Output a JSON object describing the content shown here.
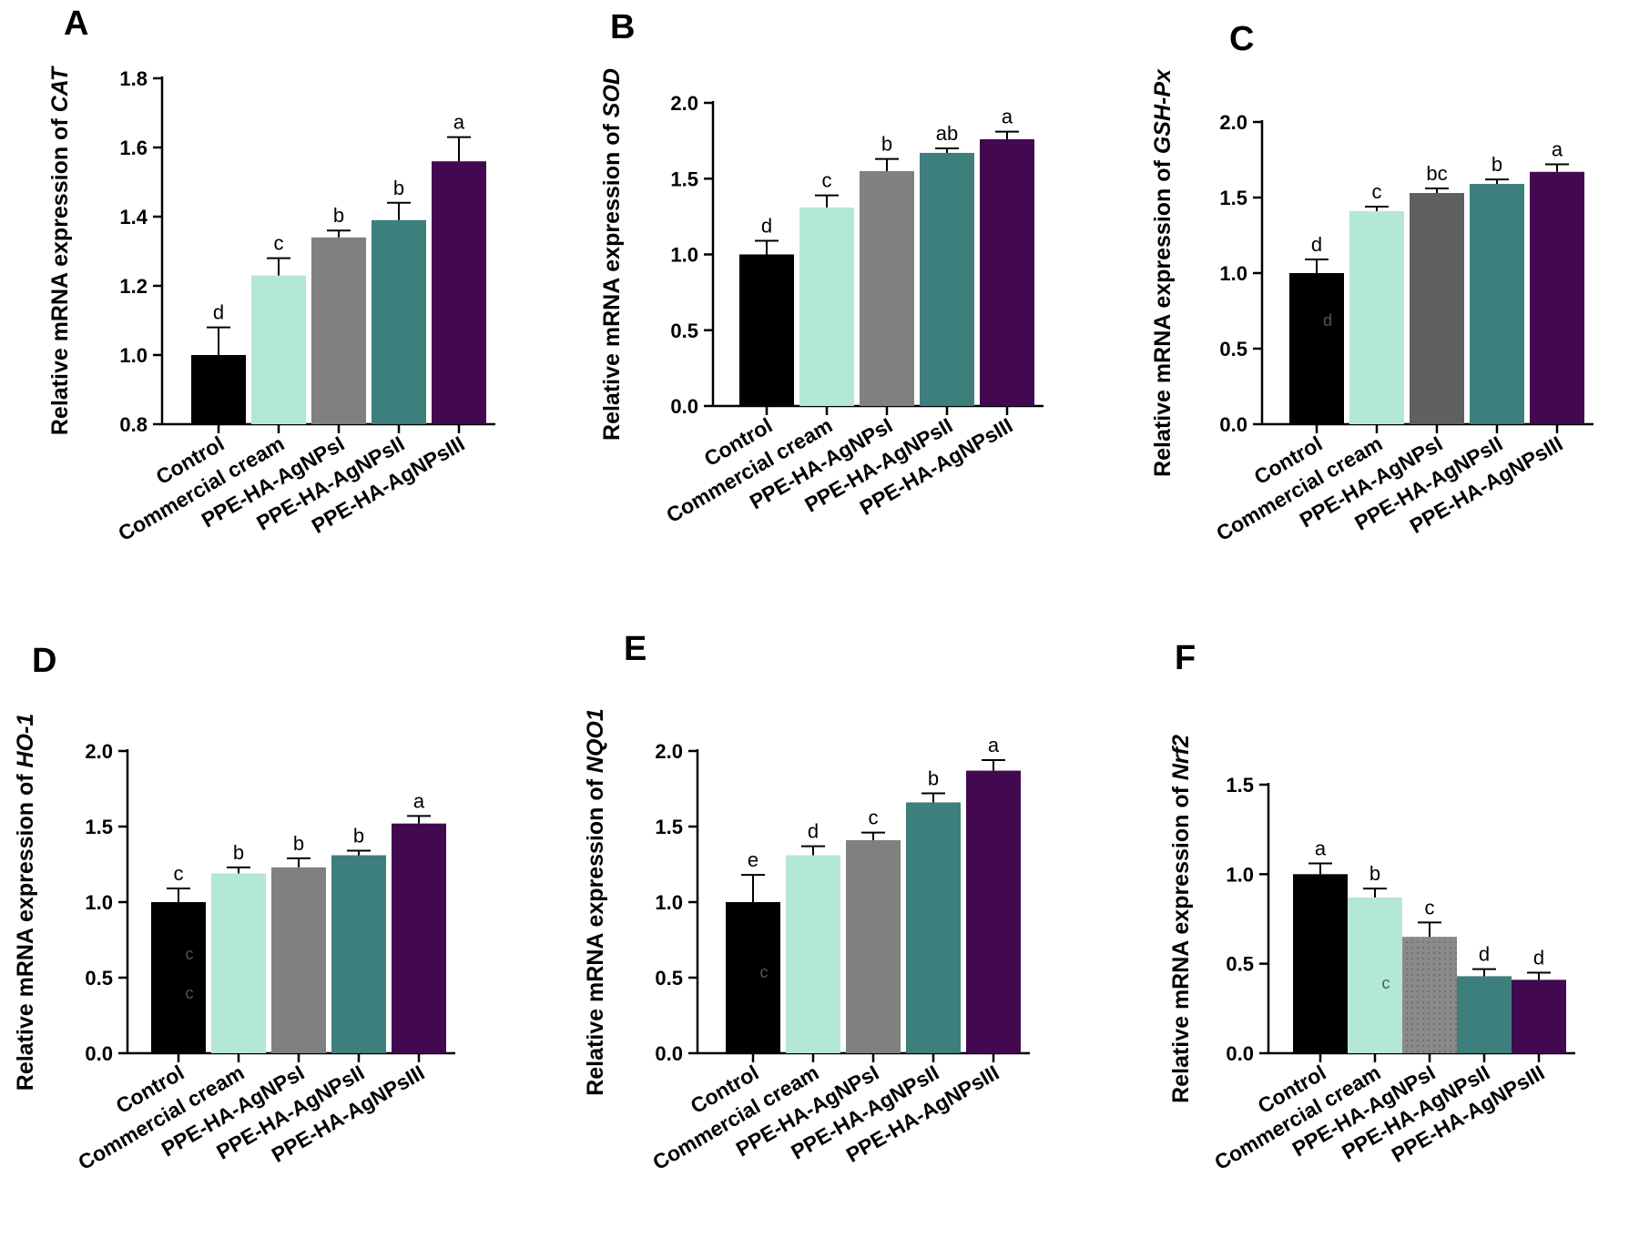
{
  "figure": {
    "ylabel_prefix": "Relative mRNA expression of "
  },
  "chart_data": [
    {
      "panel": "A",
      "type": "bar",
      "gene": "CAT",
      "ylabel": "Relative mRNA expression of CAT",
      "categories": [
        "Control",
        "Commercial cream",
        "PPE-HA-AgNPsI",
        "PPE-HA-AgNPsII",
        "PPE-HA-AgNPsIII"
      ],
      "values": [
        1.0,
        1.23,
        1.34,
        1.39,
        1.56
      ],
      "errors": [
        0.08,
        0.05,
        0.02,
        0.05,
        0.07
      ],
      "sig": [
        "d",
        "c",
        "b",
        "b",
        "a"
      ],
      "colors": [
        "#000000",
        "#b3e8d6",
        "#808080",
        "#3d7f7d",
        "#430950"
      ],
      "ylim": [
        0.8,
        1.8
      ],
      "yticks": [
        "0.8",
        "1.0",
        "1.2",
        "1.4",
        "1.6",
        "1.8"
      ]
    },
    {
      "panel": "B",
      "type": "bar",
      "gene": "SOD",
      "ylabel": "Relative mRNA expression of SOD",
      "categories": [
        "Control",
        "Commercial cream",
        "PPE-HA-AgNPsI",
        "PPE-HA-AgNPsII",
        "PPE-HA-AgNPsIII"
      ],
      "values": [
        1.0,
        1.31,
        1.55,
        1.67,
        1.76
      ],
      "errors": [
        0.09,
        0.08,
        0.08,
        0.03,
        0.05
      ],
      "sig": [
        "d",
        "c",
        "b",
        "ab",
        "a"
      ],
      "colors": [
        "#000000",
        "#b3e8d6",
        "#808080",
        "#3d7f7d",
        "#430950"
      ],
      "ylim": [
        0,
        2.0
      ],
      "yticks": [
        "0.0",
        "0.5",
        "1.0",
        "1.5",
        "2.0"
      ]
    },
    {
      "panel": "C",
      "type": "bar",
      "gene": "GSH-Px",
      "ylabel": "Relative mRNA expression of GSH-Px",
      "categories": [
        "Control",
        "Commercial cream",
        "PPE-HA-AgNPsI",
        "PPE-HA-AgNPsII",
        "PPE-HA-AgNPsIII"
      ],
      "values": [
        1.0,
        1.41,
        1.53,
        1.59,
        1.67
      ],
      "errors": [
        0.09,
        0.03,
        0.03,
        0.03,
        0.05
      ],
      "sig": [
        "d",
        "c",
        "bc",
        "b",
        "a"
      ],
      "colors": [
        "#000000",
        "#b3e8d6",
        "#606060",
        "#3d7f7d",
        "#430950"
      ],
      "ylim": [
        0,
        2.0
      ],
      "yticks": [
        "0.0",
        "0.5",
        "1.0",
        "1.5",
        "2.0"
      ],
      "ghost": {
        "bar": 0,
        "text": "d",
        "value": 0.65
      }
    },
    {
      "panel": "D",
      "type": "bar",
      "gene": "HO-1",
      "ylabel": "Relative mRNA expression of HO-1",
      "categories": [
        "Control",
        "Commercial cream",
        "PPE-HA-AgNPsI",
        "PPE-HA-AgNPsII",
        "PPE-HA-AgNPsIII"
      ],
      "values": [
        1.0,
        1.19,
        1.23,
        1.31,
        1.52
      ],
      "errors": [
        0.09,
        0.04,
        0.06,
        0.03,
        0.05
      ],
      "sig": [
        "c",
        "b",
        "b",
        "b",
        "a"
      ],
      "colors": [
        "#000000",
        "#b3e8d6",
        "#808080",
        "#3d7f7d",
        "#430950"
      ],
      "ylim": [
        0,
        2.0
      ],
      "yticks": [
        "0.0",
        "0.5",
        "1.0",
        "1.5",
        "2.0"
      ],
      "ghost": {
        "bar": 0,
        "text": "c",
        "value": 0.62
      },
      "ghost2": {
        "bar": 0,
        "text": "c",
        "value": 0.36
      }
    },
    {
      "panel": "E",
      "type": "bar",
      "gene": "NQO1",
      "ylabel": "Relative mRNA expression of NQO1",
      "categories": [
        "Control",
        "Commercial cream",
        "PPE-HA-AgNPsI",
        "PPE-HA-AgNPsII",
        "PPE-HA-AgNPsIII"
      ],
      "values": [
        1.0,
        1.31,
        1.41,
        1.66,
        1.87
      ],
      "errors": [
        0.18,
        0.06,
        0.05,
        0.06,
        0.07
      ],
      "sig": [
        "e",
        "d",
        "c",
        "b",
        "a"
      ],
      "colors": [
        "#000000",
        "#b3e8d6",
        "#808080",
        "#3d7f7d",
        "#430950"
      ],
      "ylim": [
        0,
        2.0
      ],
      "yticks": [
        "0.0",
        "0.5",
        "1.0",
        "1.5",
        "2.0"
      ],
      "ghost": {
        "bar": 0,
        "text": "c",
        "value": 0.5
      }
    },
    {
      "panel": "F",
      "type": "bar",
      "gene": "Nrf2",
      "ylabel": "Relative mRNA expression of Nrf2",
      "categories": [
        "Control",
        "Commercial cream",
        "PPE-HA-AgNPsI",
        "PPE-HA-AgNPsII",
        "PPE-HA-AgNPsIII"
      ],
      "values": [
        1.0,
        0.87,
        0.65,
        0.43,
        0.41
      ],
      "errors": [
        0.06,
        0.05,
        0.08,
        0.04,
        0.04
      ],
      "sig": [
        "a",
        "b",
        "c",
        "d",
        "d"
      ],
      "colors": [
        "#000000",
        "#b3e8d6",
        "#8a8a8a",
        "#3d7f7d",
        "#430950"
      ],
      "ylim": [
        0,
        1.5
      ],
      "yticks": [
        "0.0",
        "0.5",
        "1.0",
        "1.5"
      ],
      "ghost": {
        "bar": 1,
        "text": "c",
        "value": 0.36
      }
    }
  ]
}
